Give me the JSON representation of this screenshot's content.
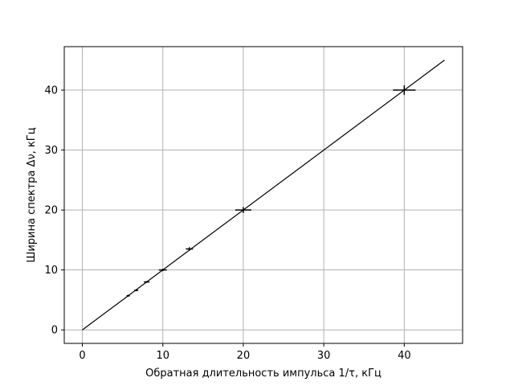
{
  "chart_data": {
    "type": "scatter",
    "title": "",
    "xlabel": "Обратная длительность импульса 1/τ, кГц",
    "ylabel": "Ширина спектра Δν, кГц",
    "xlim": [
      -2.25,
      47.25
    ],
    "ylim": [
      -2.25,
      47.25
    ],
    "xticks": [
      0,
      10,
      20,
      30,
      40
    ],
    "yticks": [
      0,
      10,
      20,
      30,
      40
    ],
    "grid": true,
    "legend": "none",
    "colors": {
      "points": "#000000",
      "line": "#000000",
      "grid": "#b0b0b0"
    },
    "series": [
      {
        "kind": "errorbar",
        "x": [
          5.7,
          6.7,
          8.0,
          10.0,
          13.3,
          20.0,
          40.0
        ],
        "y": [
          5.7,
          6.6,
          8.0,
          10.0,
          13.5,
          20.0,
          40.0
        ],
        "xerr": [
          0.2,
          0.25,
          0.35,
          0.5,
          0.45,
          1.0,
          1.4
        ],
        "yerr": [
          0.15,
          0.15,
          0.15,
          0.2,
          0.3,
          0.5,
          0.8
        ]
      },
      {
        "kind": "line",
        "x": [
          0,
          45
        ],
        "y": [
          0,
          45
        ]
      }
    ]
  }
}
